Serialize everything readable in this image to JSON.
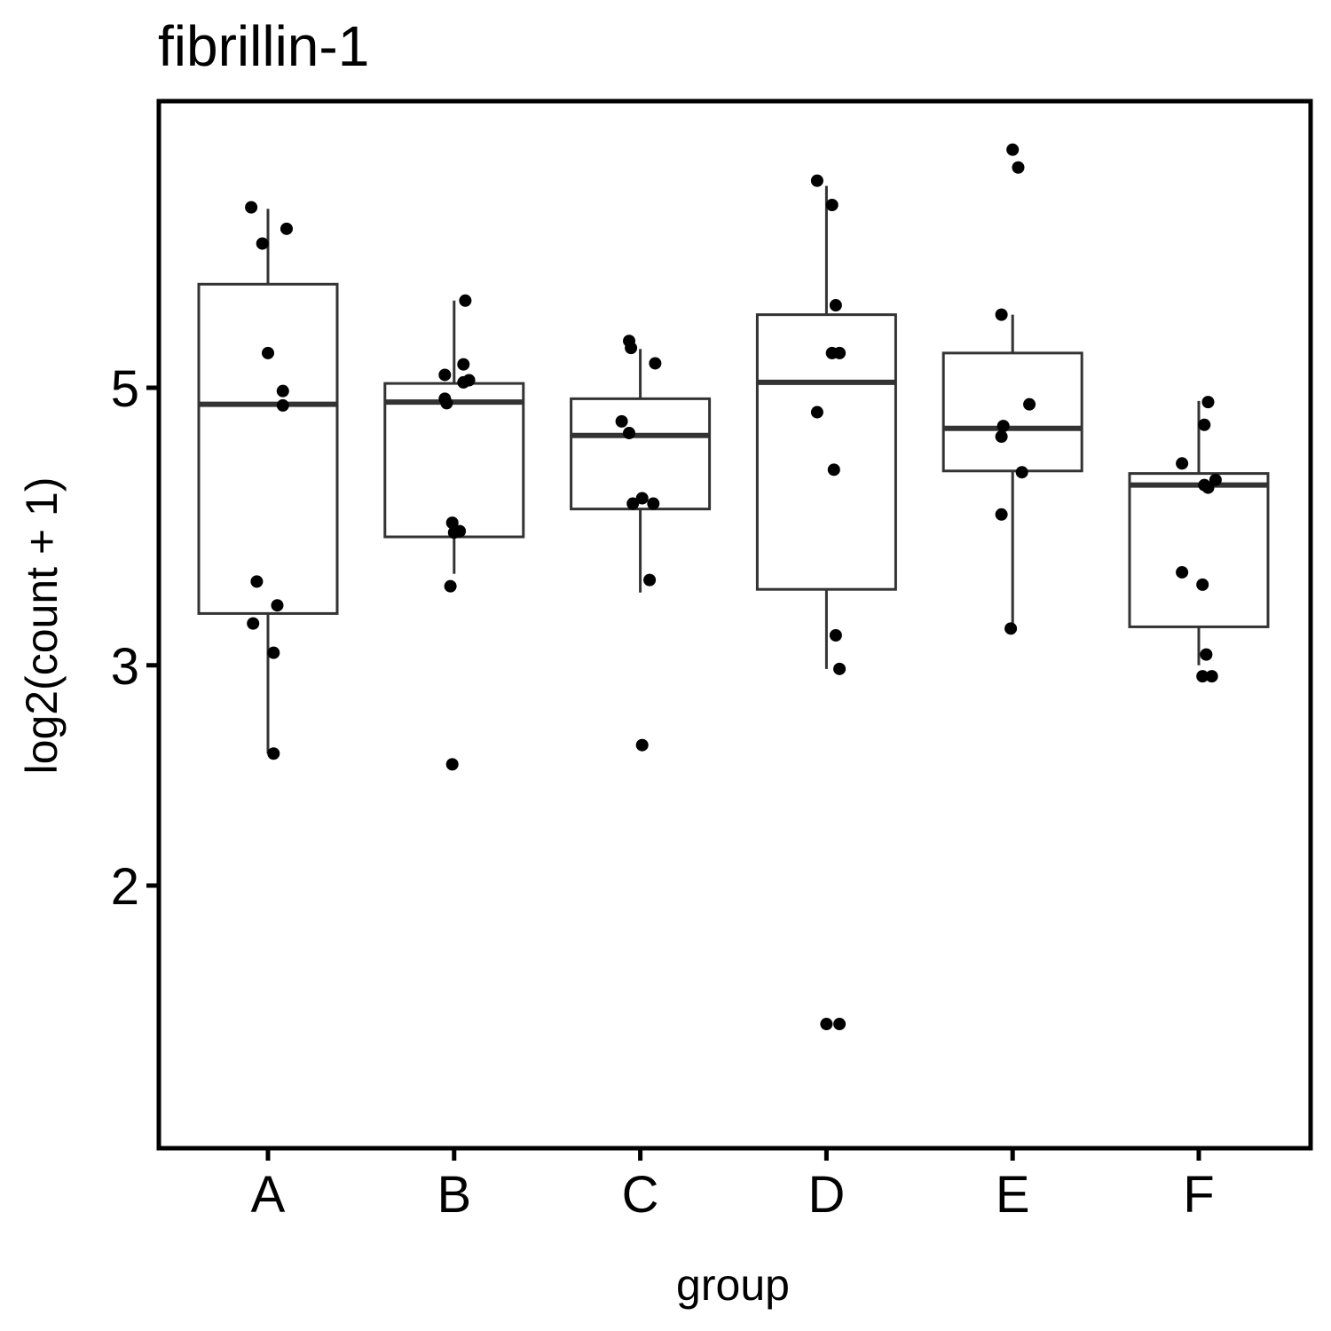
{
  "chart_data": {
    "type": "boxplot",
    "title": "fibrillin-1",
    "xlabel": "group",
    "ylabel": "log2(count + 1)",
    "y_scale": "log",
    "yticks": [
      2,
      3,
      5
    ],
    "ylim": [
      1.4,
      7.5
    ],
    "grid": false,
    "categories": [
      "A",
      "B",
      "C",
      "D",
      "E",
      "F"
    ],
    "boxes": [
      {
        "group": "A",
        "whisker_low": 2.55,
        "q1": 3.3,
        "median": 4.85,
        "q3": 6.05,
        "whisker_high": 6.95
      },
      {
        "group": "B",
        "whisker_low": 3.55,
        "q1": 3.8,
        "median": 4.87,
        "q3": 5.04,
        "whisker_high": 5.87
      },
      {
        "group": "C",
        "whisker_low": 3.43,
        "q1": 4.0,
        "median": 4.58,
        "q3": 4.9,
        "whisker_high": 5.37
      },
      {
        "group": "D",
        "whisker_low": 2.98,
        "q1": 3.45,
        "median": 5.05,
        "q3": 5.72,
        "whisker_high": 7.25
      },
      {
        "group": "E",
        "whisker_low": 3.22,
        "q1": 4.29,
        "median": 4.64,
        "q3": 5.33,
        "whisker_high": 5.72
      },
      {
        "group": "F",
        "whisker_low": 3.0,
        "q1": 3.22,
        "median": 4.18,
        "q3": 4.27,
        "whisker_high": 4.88
      }
    ],
    "points": [
      {
        "group": "A",
        "jitter": -0.09,
        "y": 6.97
      },
      {
        "group": "A",
        "jitter": 0.1,
        "y": 6.7
      },
      {
        "group": "A",
        "jitter": -0.03,
        "y": 6.52
      },
      {
        "group": "A",
        "jitter": 0.0,
        "y": 5.33
      },
      {
        "group": "A",
        "jitter": 0.08,
        "y": 4.97
      },
      {
        "group": "A",
        "jitter": 0.08,
        "y": 4.84
      },
      {
        "group": "A",
        "jitter": -0.06,
        "y": 3.5
      },
      {
        "group": "A",
        "jitter": 0.05,
        "y": 3.35
      },
      {
        "group": "A",
        "jitter": -0.08,
        "y": 3.24
      },
      {
        "group": "A",
        "jitter": 0.03,
        "y": 3.07
      },
      {
        "group": "A",
        "jitter": 0.03,
        "y": 2.55
      },
      {
        "group": "B",
        "jitter": 0.06,
        "y": 5.87
      },
      {
        "group": "B",
        "jitter": 0.05,
        "y": 5.22
      },
      {
        "group": "B",
        "jitter": -0.05,
        "y": 5.12
      },
      {
        "group": "B",
        "jitter": 0.08,
        "y": 5.07
      },
      {
        "group": "B",
        "jitter": 0.05,
        "y": 5.05
      },
      {
        "group": "B",
        "jitter": -0.05,
        "y": 4.9
      },
      {
        "group": "B",
        "jitter": -0.04,
        "y": 4.86
      },
      {
        "group": "B",
        "jitter": -0.01,
        "y": 3.9
      },
      {
        "group": "B",
        "jitter": 0.03,
        "y": 3.84
      },
      {
        "group": "B",
        "jitter": 0.0,
        "y": 3.83
      },
      {
        "group": "B",
        "jitter": -0.02,
        "y": 3.47
      },
      {
        "group": "B",
        "jitter": -0.01,
        "y": 2.5
      },
      {
        "group": "C",
        "jitter": -0.06,
        "y": 5.45
      },
      {
        "group": "C",
        "jitter": -0.05,
        "y": 5.38
      },
      {
        "group": "C",
        "jitter": 0.08,
        "y": 5.23
      },
      {
        "group": "C",
        "jitter": -0.1,
        "y": 4.7
      },
      {
        "group": "C",
        "jitter": -0.06,
        "y": 4.6
      },
      {
        "group": "C",
        "jitter": 0.01,
        "y": 4.08
      },
      {
        "group": "C",
        "jitter": -0.04,
        "y": 4.04
      },
      {
        "group": "C",
        "jitter": 0.07,
        "y": 4.04
      },
      {
        "group": "C",
        "jitter": 0.05,
        "y": 3.51
      },
      {
        "group": "C",
        "jitter": 0.01,
        "y": 2.59
      },
      {
        "group": "D",
        "jitter": -0.05,
        "y": 7.32
      },
      {
        "group": "D",
        "jitter": 0.03,
        "y": 7.0
      },
      {
        "group": "D",
        "jitter": 0.05,
        "y": 5.82
      },
      {
        "group": "D",
        "jitter": 0.07,
        "y": 5.33
      },
      {
        "group": "D",
        "jitter": 0.03,
        "y": 5.33
      },
      {
        "group": "D",
        "jitter": -0.05,
        "y": 4.78
      },
      {
        "group": "D",
        "jitter": 0.04,
        "y": 4.3
      },
      {
        "group": "D",
        "jitter": 0.05,
        "y": 3.17
      },
      {
        "group": "D",
        "jitter": 0.07,
        "y": 2.98
      },
      {
        "group": "D",
        "jitter": 0.07,
        "y": 1.55
      },
      {
        "group": "D",
        "jitter": 0.0,
        "y": 1.55
      },
      {
        "group": "E",
        "jitter": 0.0,
        "y": 7.75
      },
      {
        "group": "E",
        "jitter": 0.03,
        "y": 7.5
      },
      {
        "group": "E",
        "jitter": -0.06,
        "y": 5.72
      },
      {
        "group": "E",
        "jitter": 0.09,
        "y": 4.85
      },
      {
        "group": "E",
        "jitter": -0.05,
        "y": 4.66
      },
      {
        "group": "E",
        "jitter": -0.06,
        "y": 4.57
      },
      {
        "group": "E",
        "jitter": 0.05,
        "y": 4.28
      },
      {
        "group": "E",
        "jitter": -0.06,
        "y": 3.96
      },
      {
        "group": "E",
        "jitter": -0.01,
        "y": 3.21
      },
      {
        "group": "F",
        "jitter": 0.05,
        "y": 4.87
      },
      {
        "group": "F",
        "jitter": 0.03,
        "y": 4.67
      },
      {
        "group": "F",
        "jitter": -0.09,
        "y": 4.35
      },
      {
        "group": "F",
        "jitter": 0.09,
        "y": 4.22
      },
      {
        "group": "F",
        "jitter": 0.03,
        "y": 4.18
      },
      {
        "group": "F",
        "jitter": 0.05,
        "y": 4.16
      },
      {
        "group": "F",
        "jitter": -0.09,
        "y": 3.56
      },
      {
        "group": "F",
        "jitter": 0.02,
        "y": 3.48
      },
      {
        "group": "F",
        "jitter": 0.04,
        "y": 3.06
      },
      {
        "group": "F",
        "jitter": 0.07,
        "y": 2.94
      },
      {
        "group": "F",
        "jitter": 0.02,
        "y": 2.94
      }
    ],
    "colors": {
      "box_stroke": "#333333",
      "box_fill": "#ffffff",
      "point": "#000000",
      "frame": "#000000"
    }
  }
}
